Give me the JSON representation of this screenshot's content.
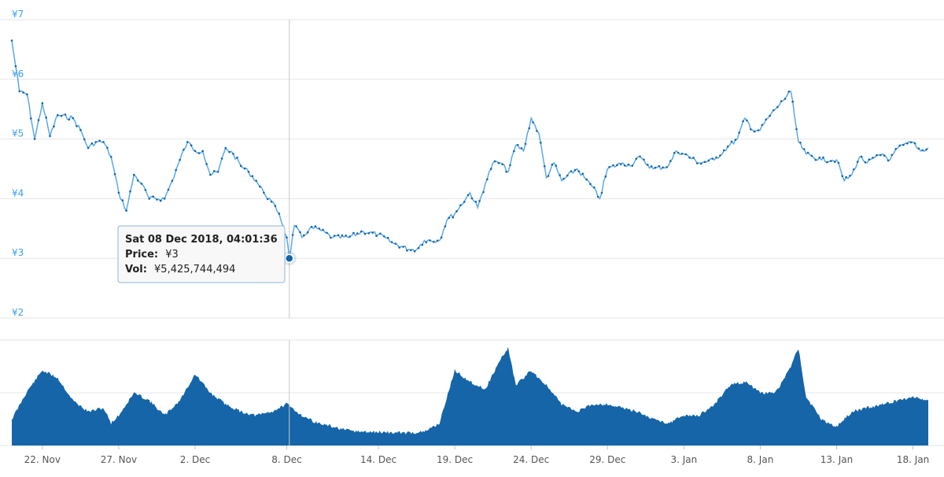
{
  "chart_data": {
    "type": "line",
    "title": "",
    "x_axis": {
      "type": "date",
      "range": [
        "2018-11-20",
        "2019-01-19"
      ],
      "tick_labels": [
        "22. Nov",
        "27. Nov",
        "2. Dec",
        "8. Dec",
        "14. Dec",
        "19. Dec",
        "24. Dec",
        "29. Dec",
        "3. Jan",
        "8. Jan",
        "13. Jan",
        "18. Jan"
      ],
      "tick_dates": [
        "2018-11-22",
        "2018-11-27",
        "2018-12-02",
        "2018-12-08",
        "2018-12-14",
        "2018-12-19",
        "2018-12-24",
        "2018-12-29",
        "2019-01-03",
        "2019-01-08",
        "2019-01-13",
        "2019-01-18"
      ]
    },
    "price_axis": {
      "tick_labels": [
        "¥7",
        "¥6",
        "¥5",
        "¥4",
        "¥3",
        "¥2"
      ],
      "tick_values": [
        7,
        6,
        5,
        4,
        3,
        2
      ],
      "range": [
        2,
        7
      ],
      "grid": true
    },
    "series": [
      {
        "kind": "line",
        "color": "#1565a8",
        "points": [
          [
            "2018-11-20",
            6.65
          ],
          [
            "2018-11-20T12:00",
            5.8
          ],
          [
            "2018-11-21",
            5.75
          ],
          [
            "2018-11-21T12:00",
            5.0
          ],
          [
            "2018-11-22",
            5.6
          ],
          [
            "2018-11-22T12:00",
            5.05
          ],
          [
            "2018-11-23",
            5.4
          ],
          [
            "2018-11-24",
            5.35
          ],
          [
            "2018-11-24T12:00",
            5.15
          ],
          [
            "2018-11-25",
            4.85
          ],
          [
            "2018-11-25T12:00",
            4.95
          ],
          [
            "2018-11-26",
            4.95
          ],
          [
            "2018-11-26T12:00",
            4.7
          ],
          [
            "2018-11-27",
            4.1
          ],
          [
            "2018-11-27T12:00",
            3.8
          ],
          [
            "2018-11-28",
            4.4
          ],
          [
            "2018-11-28T12:00",
            4.25
          ],
          [
            "2018-11-29",
            4.0
          ],
          [
            "2018-11-30",
            4.0
          ],
          [
            "2018-11-30T12:00",
            4.3
          ],
          [
            "2018-12-01",
            4.65
          ],
          [
            "2018-12-01T12:00",
            4.95
          ],
          [
            "2018-12-02",
            4.8
          ],
          [
            "2018-12-02T12:00",
            4.8
          ],
          [
            "2018-12-03",
            4.4
          ],
          [
            "2018-12-03T12:00",
            4.45
          ],
          [
            "2018-12-04",
            4.85
          ],
          [
            "2018-12-04T12:00",
            4.75
          ],
          [
            "2018-12-05",
            4.55
          ],
          [
            "2018-12-05T12:00",
            4.45
          ],
          [
            "2018-12-06",
            4.3
          ],
          [
            "2018-12-06T12:00",
            4.1
          ],
          [
            "2018-12-07",
            3.95
          ],
          [
            "2018-12-07T12:00",
            3.75
          ],
          [
            "2018-12-08",
            3.35
          ],
          [
            "2018-12-08T04:01:36",
            3.0
          ],
          [
            "2018-12-08T12:00",
            3.55
          ],
          [
            "2018-12-09",
            3.35
          ],
          [
            "2018-12-09T12:00",
            3.5
          ],
          [
            "2018-12-10",
            3.5
          ],
          [
            "2018-12-11",
            3.35
          ],
          [
            "2018-12-12",
            3.35
          ],
          [
            "2018-12-13",
            3.45
          ],
          [
            "2018-12-14",
            3.4
          ],
          [
            "2018-12-15",
            3.25
          ],
          [
            "2018-12-16",
            3.15
          ],
          [
            "2018-12-16T12:00",
            3.15
          ],
          [
            "2018-12-17",
            3.3
          ],
          [
            "2018-12-18",
            3.3
          ],
          [
            "2018-12-18T12:00",
            3.65
          ],
          [
            "2018-12-19",
            3.75
          ],
          [
            "2018-12-20",
            4.1
          ],
          [
            "2018-12-20T12:00",
            3.85
          ],
          [
            "2018-12-21",
            4.25
          ],
          [
            "2018-12-21T12:00",
            4.6
          ],
          [
            "2018-12-22",
            4.6
          ],
          [
            "2018-12-22T12:00",
            4.45
          ],
          [
            "2018-12-23",
            4.9
          ],
          [
            "2018-12-23T12:00",
            4.8
          ],
          [
            "2018-12-24",
            5.35
          ],
          [
            "2018-12-24T12:00",
            5.1
          ],
          [
            "2018-12-25",
            4.35
          ],
          [
            "2018-12-25T12:00",
            4.6
          ],
          [
            "2018-12-26",
            4.3
          ],
          [
            "2018-12-27",
            4.5
          ],
          [
            "2018-12-27T12:00",
            4.35
          ],
          [
            "2018-12-28",
            4.2
          ],
          [
            "2018-12-28T12:00",
            4.0
          ],
          [
            "2018-12-29",
            4.5
          ],
          [
            "2018-12-30",
            4.6
          ],
          [
            "2018-12-30T12:00",
            4.55
          ],
          [
            "2018-12-31",
            4.7
          ],
          [
            "2019-01-01",
            4.5
          ],
          [
            "2019-01-02",
            4.55
          ],
          [
            "2019-01-02T12:00",
            4.8
          ],
          [
            "2019-01-03",
            4.75
          ],
          [
            "2019-01-04",
            4.6
          ],
          [
            "2019-01-05",
            4.65
          ],
          [
            "2019-01-06",
            4.9
          ],
          [
            "2019-01-06T12:00",
            5.0
          ],
          [
            "2019-01-07",
            5.35
          ],
          [
            "2019-01-07T12:00",
            5.15
          ],
          [
            "2019-01-08",
            5.15
          ],
          [
            "2019-01-08T12:00",
            5.35
          ],
          [
            "2019-01-09",
            5.5
          ],
          [
            "2019-01-10",
            5.8
          ],
          [
            "2019-01-10T12:00",
            4.95
          ],
          [
            "2019-01-11",
            4.75
          ],
          [
            "2019-01-12",
            4.65
          ],
          [
            "2019-01-13",
            4.65
          ],
          [
            "2019-01-13T12:00",
            4.3
          ],
          [
            "2019-01-14",
            4.4
          ],
          [
            "2019-01-14T12:00",
            4.7
          ],
          [
            "2019-01-15",
            4.6
          ],
          [
            "2019-01-16",
            4.75
          ],
          [
            "2019-01-16T12:00",
            4.65
          ],
          [
            "2019-01-17",
            4.85
          ],
          [
            "2019-01-18",
            4.95
          ],
          [
            "2019-01-18T12:00",
            4.8
          ],
          [
            "2019-01-19",
            4.85
          ]
        ]
      },
      {
        "kind": "area",
        "color": "#1565a8",
        "label_in_tooltip": "Vol",
        "points": [
          [
            "2018-11-20",
            0.35
          ],
          [
            "2018-11-21",
            0.72
          ],
          [
            "2018-11-22",
            1.0
          ],
          [
            "2018-11-23",
            0.9
          ],
          [
            "2018-11-24",
            0.6
          ],
          [
            "2018-11-25",
            0.45
          ],
          [
            "2018-11-26",
            0.5
          ],
          [
            "2018-11-26T12:00",
            0.3
          ],
          [
            "2018-11-27",
            0.4
          ],
          [
            "2018-11-28",
            0.7
          ],
          [
            "2018-11-29",
            0.6
          ],
          [
            "2018-11-30",
            0.4
          ],
          [
            "2018-12-01",
            0.6
          ],
          [
            "2018-12-02",
            0.95
          ],
          [
            "2018-12-03",
            0.7
          ],
          [
            "2018-12-04",
            0.55
          ],
          [
            "2018-12-05",
            0.45
          ],
          [
            "2018-12-06",
            0.4
          ],
          [
            "2018-12-07",
            0.45
          ],
          [
            "2018-12-08",
            0.55
          ],
          [
            "2018-12-09",
            0.4
          ],
          [
            "2018-12-10",
            0.3
          ],
          [
            "2018-12-11",
            0.25
          ],
          [
            "2018-12-12",
            0.2
          ],
          [
            "2018-12-13",
            0.18
          ],
          [
            "2018-12-14",
            0.18
          ],
          [
            "2018-12-15",
            0.17
          ],
          [
            "2018-12-16",
            0.17
          ],
          [
            "2018-12-17",
            0.18
          ],
          [
            "2018-12-18",
            0.3
          ],
          [
            "2018-12-19",
            1.0
          ],
          [
            "2018-12-20",
            0.85
          ],
          [
            "2018-12-21",
            0.75
          ],
          [
            "2018-12-22",
            1.15
          ],
          [
            "2018-12-22T12:00",
            1.3
          ],
          [
            "2018-12-23",
            0.8
          ],
          [
            "2018-12-24",
            1.0
          ],
          [
            "2018-12-25",
            0.8
          ],
          [
            "2018-12-26",
            0.55
          ],
          [
            "2018-12-27",
            0.45
          ],
          [
            "2018-12-28",
            0.55
          ],
          [
            "2018-12-29",
            0.55
          ],
          [
            "2018-12-30",
            0.5
          ],
          [
            "2018-12-31",
            0.45
          ],
          [
            "2019-01-01",
            0.35
          ],
          [
            "2019-01-02",
            0.3
          ],
          [
            "2019-01-03",
            0.4
          ],
          [
            "2019-01-04",
            0.4
          ],
          [
            "2019-01-05",
            0.55
          ],
          [
            "2019-01-06",
            0.8
          ],
          [
            "2019-01-07",
            0.85
          ],
          [
            "2019-01-08",
            0.7
          ],
          [
            "2019-01-09",
            0.7
          ],
          [
            "2019-01-10",
            1.05
          ],
          [
            "2019-01-10T12:00",
            1.3
          ],
          [
            "2019-01-11",
            0.65
          ],
          [
            "2019-01-12",
            0.35
          ],
          [
            "2019-01-13",
            0.25
          ],
          [
            "2019-01-14",
            0.45
          ],
          [
            "2019-01-15",
            0.5
          ],
          [
            "2019-01-16",
            0.55
          ],
          [
            "2019-01-17",
            0.6
          ],
          [
            "2019-01-18",
            0.65
          ],
          [
            "2019-01-19",
            0.6
          ]
        ]
      }
    ],
    "tooltip": {
      "date": "2018-12-08T04:01:36",
      "price": 3,
      "title": "Sat 08 Dec 2018, 04:01:36",
      "price_label": "Price:",
      "price_value": "¥3",
      "vol_label": "Vol:",
      "vol_value": "¥5,425,744,494"
    }
  }
}
